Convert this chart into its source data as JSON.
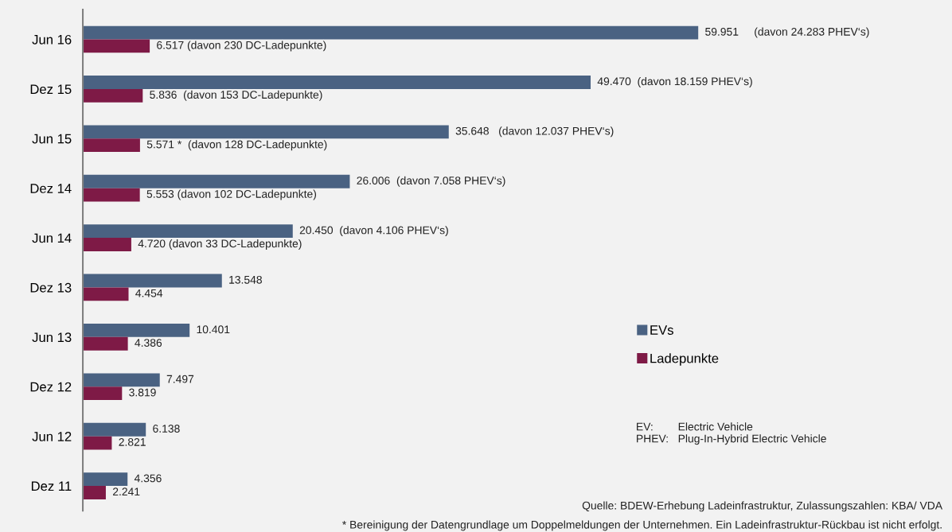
{
  "chart_data": {
    "type": "bar",
    "orientation": "horizontal",
    "categories": [
      "Jun 16",
      "Dez 15",
      "Jun 15",
      "Dez 14",
      "Jun 14",
      "Dez 13",
      "Jun 13",
      "Dez 12",
      "Jun 12",
      "Dez 11"
    ],
    "series": [
      {
        "name": "EVs",
        "color": "#4a6282",
        "values": [
          59951,
          49470,
          35648,
          26006,
          20450,
          13548,
          10401,
          7497,
          6138,
          4356
        ],
        "value_labels": [
          "59.951     (davon 24.283 PHEV‘s)",
          "49.470  (davon 18.159 PHEV‘s)",
          "35.648   (davon 12.037 PHEV‘s)",
          "26.006  (davon 7.058 PHEV‘s)",
          "20.450  (davon 4.106 PHEV‘s)",
          "13.548",
          "10.401",
          "7.497",
          "6.138",
          "4.356"
        ]
      },
      {
        "name": "Ladepunkte",
        "color": "#7e1a46",
        "values": [
          6517,
          5836,
          5571,
          5553,
          4720,
          4454,
          4386,
          3819,
          2821,
          2241
        ],
        "value_labels": [
          "6.517 (davon 230 DC-Ladepunkte)",
          "5.836  (davon 153 DC-Ladepunkte)",
          "5.571 *  (davon 128 DC-Ladepunkte)",
          "5.553 (davon 102 DC-Ladepunkte)",
          "4.720 (davon 33 DC-Ladepunkte)",
          "4.454",
          "4.386",
          "3.819",
          "2.821",
          "2.241"
        ]
      }
    ],
    "tick_labels": "y",
    "legend": "right",
    "grid": false,
    "annotations": [
      "EV:        Electric Vehicle\nPHEV:   Plug-In-Hybrid Electric Vehicle",
      "Quelle: BDEW-Erhebung Ladeinfrastruktur, Zulassungszahlen: KBA/ VDA",
      "* Bereinigung der Datengrundlage um Doppelmeldungen der Unternehmen. Ein Ladeinfrastruktur-Rückbau ist nicht erfolgt."
    ]
  }
}
